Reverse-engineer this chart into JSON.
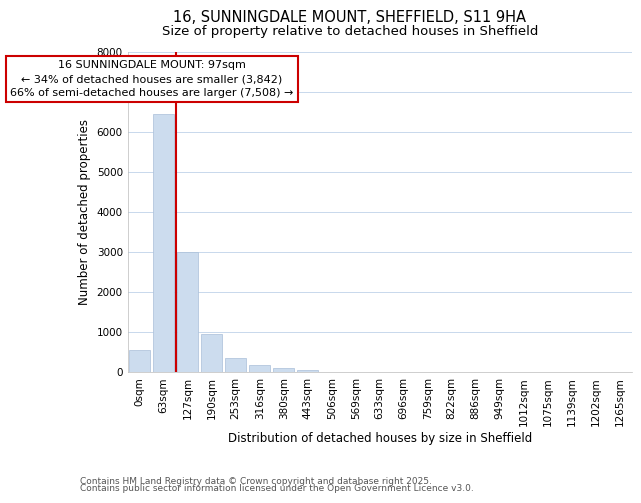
{
  "title_line1": "16, SUNNINGDALE MOUNT, SHEFFIELD, S11 9HA",
  "title_line2": "Size of property relative to detached houses in Sheffield",
  "xlabel": "Distribution of detached houses by size in Sheffield",
  "ylabel": "Number of detached properties",
  "bar_labels": [
    "0sqm",
    "63sqm",
    "127sqm",
    "190sqm",
    "253sqm",
    "316sqm",
    "380sqm",
    "443sqm",
    "506sqm",
    "569sqm",
    "633sqm",
    "696sqm",
    "759sqm",
    "822sqm",
    "886sqm",
    "949sqm",
    "1012sqm",
    "1075sqm",
    "1139sqm",
    "1202sqm",
    "1265sqm"
  ],
  "bar_values": [
    550,
    6450,
    3000,
    950,
    350,
    170,
    100,
    60,
    5,
    2,
    1,
    0,
    0,
    0,
    0,
    0,
    0,
    0,
    0,
    0,
    0
  ],
  "bar_color": "#ccdcee",
  "bar_edgecolor": "#aabfd8",
  "ylim": [
    0,
    8000
  ],
  "yticks": [
    0,
    1000,
    2000,
    3000,
    4000,
    5000,
    6000,
    7000,
    8000
  ],
  "property_line_color": "#cc0000",
  "annotation_line1": "16 SUNNINGDALE MOUNT: 97sqm",
  "annotation_line2": "← 34% of detached houses are smaller (3,842)",
  "annotation_line3": "66% of semi-detached houses are larger (7,508) →",
  "annotation_box_color": "#cc0000",
  "annotation_text_color": "#000000",
  "grid_color": "#c8d8ec",
  "plot_bg_color": "#ffffff",
  "fig_bg_color": "#ffffff",
  "footer_line1": "Contains HM Land Registry data © Crown copyright and database right 2025.",
  "footer_line2": "Contains public sector information licensed under the Open Government Licence v3.0.",
  "title_fontsize": 10.5,
  "subtitle_fontsize": 9.5,
  "axis_label_fontsize": 8.5,
  "tick_fontsize": 7.5,
  "annotation_fontsize": 8,
  "footer_fontsize": 6.5
}
